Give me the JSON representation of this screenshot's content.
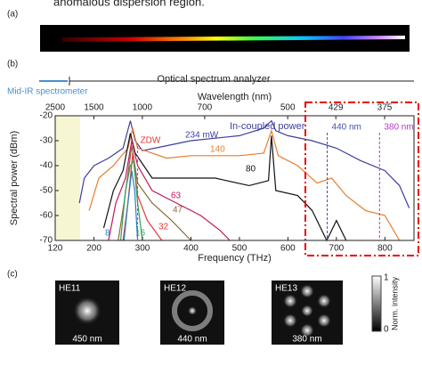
{
  "header_text": "anomalous dispersion region.",
  "panel_labels": {
    "a": "(a)",
    "b": "(b)",
    "c": "(c)"
  },
  "chart_data": {
    "type": "line",
    "xlabel": "Frequency (THz)",
    "ylabel": "Spectral power (dBm)",
    "x2label": "Wavelength (nm)",
    "instrument_labels": [
      "Optical spectrum analyzer",
      "Mid-IR spectrometer"
    ],
    "legend_title": "In-coupled power",
    "xlim": [
      120,
      860
    ],
    "xticks": [
      120,
      200,
      300,
      400,
      500,
      600,
      700,
      800
    ],
    "ylim": [
      -70,
      -20
    ],
    "yticks": [
      -20,
      -30,
      -40,
      -50,
      -60,
      -70
    ],
    "x2ticks": [
      2500,
      1500,
      1000,
      700,
      500,
      429,
      375
    ],
    "annotations": [
      {
        "text": "ZDW",
        "x": 290,
        "color": "#e53935"
      },
      {
        "text": "440 nm",
        "x": 681,
        "color": "#3f51b5"
      },
      {
        "text": "380 nm",
        "x": 789,
        "color": "#b03cc0"
      }
    ],
    "series": [
      {
        "name": "234 mW",
        "color": "#3b3f9e",
        "x": [
          170,
          180,
          200,
          230,
          260,
          275,
          285,
          300,
          350,
          400,
          450,
          500,
          550,
          566,
          575,
          600,
          650,
          700,
          750,
          800,
          830,
          850
        ],
        "values": [
          -55,
          -45,
          -40,
          -37,
          -33,
          -22,
          -30,
          -34,
          -32,
          -30,
          -29,
          -28,
          -25,
          -22,
          -26,
          -28,
          -30,
          -33,
          -38,
          -42,
          -48,
          -57
        ]
      },
      {
        "name": "140",
        "color": "#e67e30",
        "x": [
          190,
          210,
          240,
          270,
          280,
          290,
          350,
          400,
          450,
          500,
          550,
          566,
          580,
          620,
          660,
          690,
          720,
          760,
          800,
          830
        ],
        "values": [
          -58,
          -45,
          -40,
          -33,
          -25,
          -33,
          -37,
          -36,
          -36,
          -36,
          -35,
          -26,
          -36,
          -40,
          -47,
          -45,
          -52,
          -58,
          -60,
          -70
        ]
      },
      {
        "name": "80",
        "color": "#111111",
        "x": [
          220,
          240,
          260,
          275,
          285,
          320,
          380,
          450,
          520,
          560,
          566,
          575,
          620,
          650,
          680,
          700,
          720
        ],
        "values": [
          -65,
          -50,
          -42,
          -27,
          -35,
          -45,
          -45,
          -45,
          -48,
          -46,
          -28,
          -50,
          -52,
          -58,
          -70,
          -62,
          -70
        ]
      },
      {
        "name": "63",
        "color": "#c2185b",
        "x": [
          230,
          245,
          265,
          278,
          290,
          320,
          370,
          420,
          460,
          480
        ],
        "values": [
          -70,
          -55,
          -45,
          -30,
          -40,
          -50,
          -55,
          -60,
          -66,
          -70
        ]
      },
      {
        "name": "47",
        "color": "#8b6b3d",
        "x": [
          250,
          262,
          278,
          290,
          320,
          360,
          400
        ],
        "values": [
          -70,
          -55,
          -32,
          -47,
          -55,
          -62,
          -70
        ]
      },
      {
        "name": "32",
        "color": "#e53935",
        "x": [
          260,
          270,
          280,
          290,
          310,
          340
        ],
        "values": [
          -70,
          -55,
          -35,
          -52,
          -62,
          -70
        ]
      },
      {
        "name": "16",
        "color": "#2e9e5a",
        "x": [
          255,
          265,
          275,
          282,
          290,
          300
        ],
        "values": [
          -70,
          -50,
          -40,
          -38,
          -55,
          -70
        ]
      },
      {
        "name": "8",
        "color": "#2a7fc0",
        "x": [
          262,
          270,
          278,
          284,
          290
        ],
        "values": [
          -70,
          -55,
          -42,
          -50,
          -70
        ]
      }
    ]
  },
  "mode_images": [
    {
      "mode": "HE11",
      "wavelength": "450 nm"
    },
    {
      "mode": "HE12",
      "wavelength": "440 nm"
    },
    {
      "mode": "HE13",
      "wavelength": "380 nm"
    }
  ],
  "colorbar": {
    "label": "Norm. intensity",
    "max": "1",
    "min": "0"
  }
}
